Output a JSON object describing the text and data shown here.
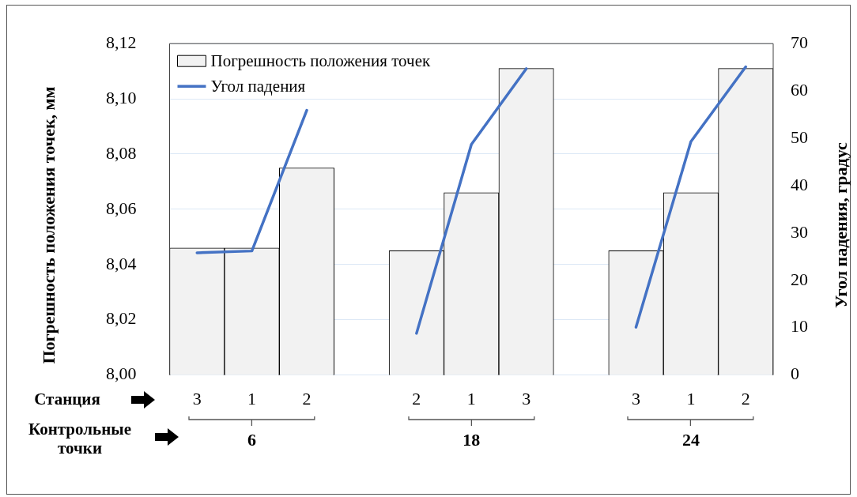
{
  "chart_data": {
    "type": "bar",
    "ylabel": "Погрешность положения точек, мм",
    "y2label": "Угол падения,  градус",
    "categories": [
      "3",
      "1",
      "2",
      null,
      "2",
      "1",
      "3",
      null,
      "3",
      "1",
      "2"
    ],
    "series": [
      {
        "name": "Погрешность положения точек",
        "color": "#f2f2f2",
        "values": [
          8.046,
          8.046,
          8.075,
          null,
          8.045,
          8.066,
          8.111,
          null,
          8.045,
          8.066,
          8.111
        ]
      },
      {
        "name": "Угол падения",
        "type": "line",
        "axis": "y2",
        "color": "#4472c4",
        "values": [
          25.8,
          26.2,
          55.9,
          null,
          8.8,
          48.7,
          64.7,
          null,
          10.1,
          49.3,
          65.1
        ]
      }
    ],
    "ylim": [
      8,
      8.12
    ],
    "yticks": [
      {
        "value": 8,
        "label": "8,00"
      },
      {
        "value": 8.02,
        "label": "8,02"
      },
      {
        "value": 8.04,
        "label": "8,04"
      },
      {
        "value": 8.06,
        "label": "8,06"
      },
      {
        "value": 8.08,
        "label": "8,08"
      },
      {
        "value": 8.1,
        "label": "8,10"
      },
      {
        "value": 8.12,
        "label": "8,12"
      }
    ],
    "y2lim": [
      0,
      70
    ],
    "y2ticks": [
      0,
      10,
      20,
      30,
      40,
      50,
      60,
      70
    ],
    "annotations": [
      "Станция",
      "Контрольные точки",
      "6",
      "18",
      "24"
    ],
    "grid": "y",
    "legend": "top left",
    "marker": "none",
    "line_style": "solid"
  }
}
